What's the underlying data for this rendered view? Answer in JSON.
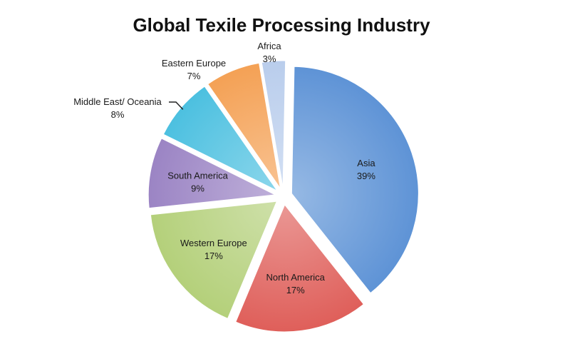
{
  "chart_data": {
    "type": "pie",
    "title": "Global Texile Processing Industry",
    "slices": [
      {
        "label": "Asia",
        "value": 39,
        "value_text": "39%",
        "color": "#5e93d6"
      },
      {
        "label": "North America",
        "value": 17,
        "value_text": "17%",
        "color": "#df5f5a"
      },
      {
        "label": "Western Europe",
        "value": 17,
        "value_text": "17%",
        "color": "#b4d07a"
      },
      {
        "label": "South America",
        "value": 9,
        "value_text": "9%",
        "color": "#9b84c4"
      },
      {
        "label": "Middle East/ Oceania",
        "value": 8,
        "value_text": "8%",
        "color": "#4cc0e0"
      },
      {
        "label": "Eastern Europe",
        "value": 7,
        "value_text": "7%",
        "color": "#f4a155"
      },
      {
        "label": "Africa",
        "value": 3,
        "value_text": "3%",
        "color": "#b9cdec"
      }
    ]
  }
}
